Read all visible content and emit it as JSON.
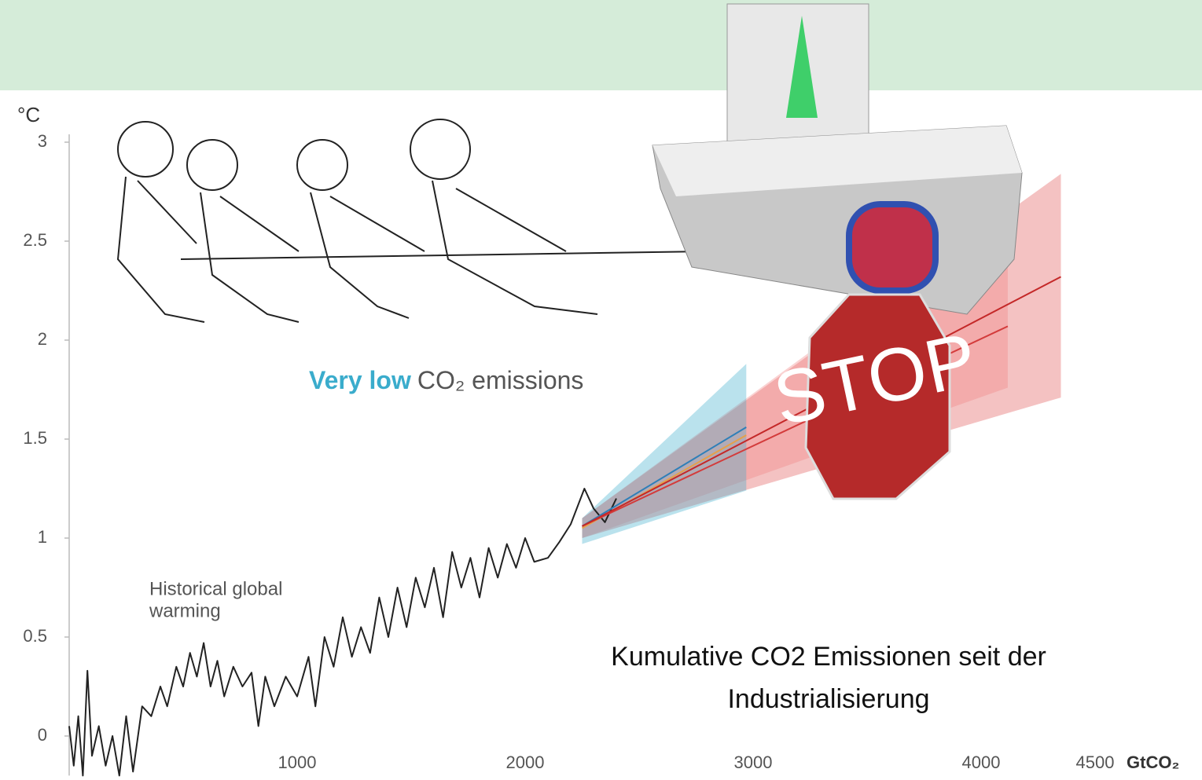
{
  "chart_data": {
    "type": "line",
    "y_unit": "°C",
    "x_unit": "GtCO₂",
    "xlim": [
      0,
      4500
    ],
    "xticks": [
      1000,
      2000,
      3000,
      4000,
      4500
    ],
    "ylim": [
      -0.2,
      3
    ],
    "yticks": [
      0,
      0.5,
      1,
      1.5,
      2,
      2.5,
      3
    ],
    "annotations": {
      "historical": [
        "Historical global",
        "warming"
      ],
      "scenario_highlight": "Very low",
      "scenario_rest": "CO₂ emissions",
      "caption": [
        "Kumulative CO2 Emissionen seit der",
        "Industrialisierung"
      ],
      "stop_sign": "STOP"
    },
    "bands": [
      {
        "color": "#e05050",
        "x": [
          2250,
          4350
        ],
        "lower": [
          1.0,
          1.71
        ],
        "upper": [
          1.1,
          2.84
        ]
      },
      {
        "color": "#f08080",
        "x": [
          2250,
          4117
        ],
        "lower": [
          1.0,
          1.76
        ],
        "upper": [
          1.1,
          2.67
        ]
      },
      {
        "color": "#3aaccc",
        "x": [
          2250,
          2970
        ],
        "lower": [
          0.97,
          1.24
        ],
        "upper": [
          1.1,
          1.88
        ]
      }
    ],
    "series": [
      {
        "color": "#222222",
        "x": [
          0,
          20,
          40,
          60,
          80,
          100,
          130,
          160,
          190,
          220,
          250,
          280,
          320,
          360,
          400,
          430,
          470,
          500,
          530,
          560,
          590,
          620,
          650,
          680,
          720,
          760,
          800,
          830,
          860,
          900,
          950,
          1000,
          1050,
          1080,
          1120,
          1160,
          1200,
          1240,
          1280,
          1320,
          1360,
          1400,
          1440,
          1480,
          1520,
          1560,
          1600,
          1640,
          1680,
          1720,
          1760,
          1800,
          1840,
          1880,
          1920,
          1960,
          2000,
          2040,
          2100,
          2150,
          2200,
          2260,
          2300,
          2350,
          2400
        ],
        "values": [
          0.05,
          -0.15,
          0.1,
          -0.2,
          0.33,
          -0.1,
          0.05,
          -0.15,
          0.0,
          -0.2,
          0.1,
          -0.18,
          0.15,
          0.1,
          0.25,
          0.15,
          0.35,
          0.25,
          0.42,
          0.3,
          0.47,
          0.25,
          0.38,
          0.2,
          0.35,
          0.25,
          0.32,
          0.05,
          0.3,
          0.15,
          0.3,
          0.2,
          0.4,
          0.15,
          0.5,
          0.35,
          0.6,
          0.4,
          0.55,
          0.42,
          0.7,
          0.5,
          0.75,
          0.55,
          0.8,
          0.65,
          0.85,
          0.6,
          0.93,
          0.75,
          0.9,
          0.7,
          0.95,
          0.8,
          0.97,
          0.85,
          1.0,
          0.88,
          0.9,
          0.98,
          1.07,
          1.25,
          1.15,
          1.08,
          1.2
        ]
      },
      {
        "color": "#e6a04a",
        "x": [
          2250,
          2970
        ],
        "values": [
          1.05,
          1.52
        ]
      },
      {
        "color": "#2f7fb8",
        "x": [
          2250,
          2970
        ],
        "values": [
          1.06,
          1.56
        ]
      },
      {
        "color": "#d33b3b",
        "x": [
          2250,
          4117
        ],
        "values": [
          1.06,
          2.07
        ]
      },
      {
        "color": "#c42828",
        "x": [
          2250,
          4350
        ],
        "values": [
          1.06,
          2.32
        ]
      }
    ]
  }
}
